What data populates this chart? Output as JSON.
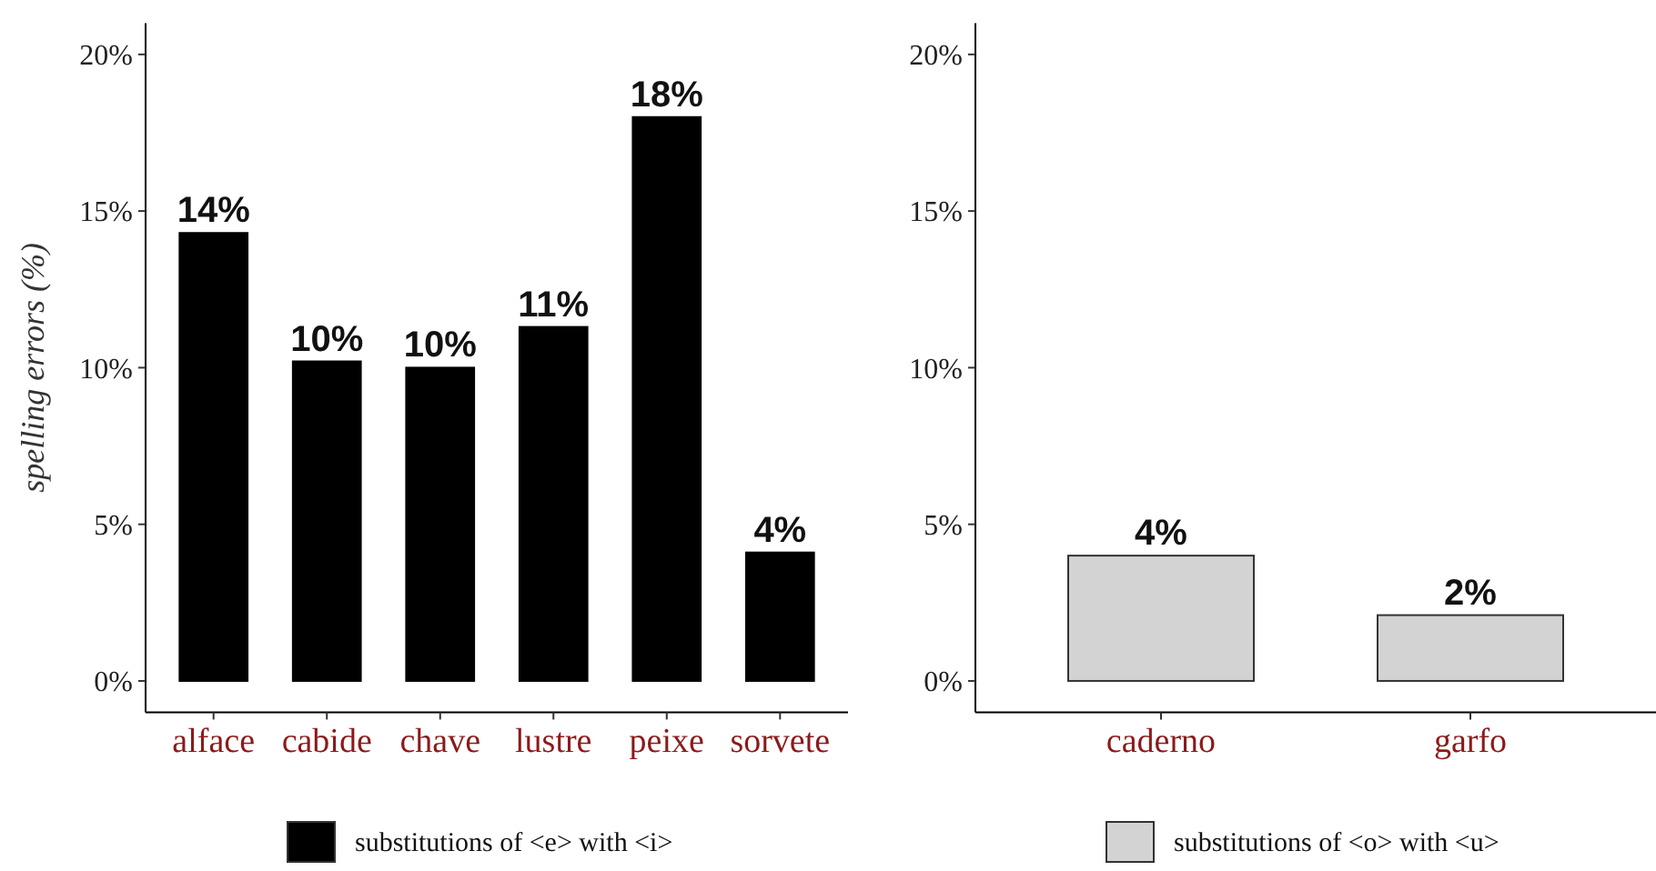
{
  "chart_data": [
    {
      "type": "bar",
      "ylabel": "spelling errors (%)",
      "categories": [
        "alface",
        "cabide",
        "chave",
        "lustre",
        "peixe",
        "sorvete"
      ],
      "series": [
        {
          "name": "substitutions of <e> with <i>",
          "color": "#000000",
          "values": [
            14.3,
            10.2,
            10.0,
            11.3,
            18.0,
            4.1
          ],
          "value_labels": [
            "14%",
            "10%",
            "10%",
            "11%",
            "18%",
            "4%"
          ]
        }
      ],
      "ylim": [
        -1,
        21
      ],
      "yticks": [
        {
          "value": 0,
          "label": "0%"
        },
        {
          "value": 5,
          "label": "5%"
        },
        {
          "value": 10,
          "label": "10%"
        },
        {
          "value": 15,
          "label": "15%"
        },
        {
          "value": 20,
          "label": "20%"
        }
      ],
      "grid": false,
      "legend": "bottom"
    },
    {
      "type": "bar",
      "categories": [
        "caderno",
        "garfo"
      ],
      "series": [
        {
          "name": "substitutions of <o> with <u>",
          "color": "#d3d3d3",
          "values": [
            4.0,
            2.1
          ],
          "value_labels": [
            "4%",
            "2%"
          ]
        }
      ],
      "ylim": [
        -1,
        21
      ],
      "yticks": [
        {
          "value": 0,
          "label": "0%"
        },
        {
          "value": 5,
          "label": "5%"
        },
        {
          "value": 10,
          "label": "10%"
        },
        {
          "value": 15,
          "label": "15%"
        },
        {
          "value": 20,
          "label": "20%"
        }
      ],
      "grid": false,
      "legend": "bottom"
    }
  ]
}
